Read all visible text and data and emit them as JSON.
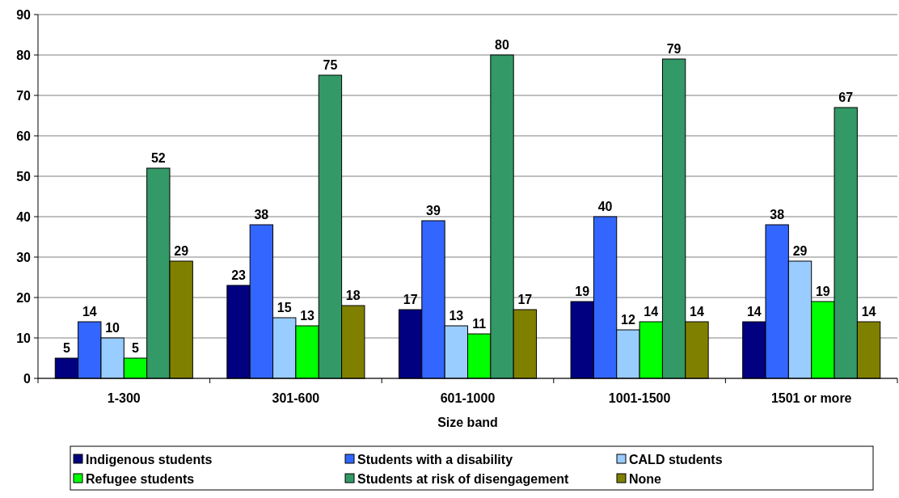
{
  "chart_data": {
    "type": "bar",
    "xlabel": "Size band",
    "categories": [
      "1-300",
      "301-600",
      "601-1000",
      "1001-1500",
      "1501 or more"
    ],
    "series": [
      {
        "name": "Indigenous students",
        "color": "#000080",
        "values": [
          5,
          23,
          17,
          19,
          14
        ]
      },
      {
        "name": "Students with a disability",
        "color": "#3366ff",
        "values": [
          14,
          38,
          39,
          40,
          38
        ]
      },
      {
        "name": "CALD students",
        "color": "#99ccff",
        "values": [
          10,
          15,
          13,
          12,
          29
        ]
      },
      {
        "name": "Refugee students",
        "color": "#00ff00",
        "values": [
          5,
          13,
          11,
          14,
          19
        ]
      },
      {
        "name": "Students at risk of disengagement",
        "color": "#339966",
        "values": [
          52,
          75,
          80,
          79,
          67
        ]
      },
      {
        "name": "None",
        "color": "#808000",
        "values": [
          29,
          18,
          17,
          14,
          14
        ]
      }
    ],
    "ylim": [
      0,
      90
    ],
    "yticks": [
      0,
      10,
      20,
      30,
      40,
      50,
      60,
      70,
      80,
      90
    ],
    "grid": "y",
    "legend": "bottom",
    "data_labels": true
  }
}
